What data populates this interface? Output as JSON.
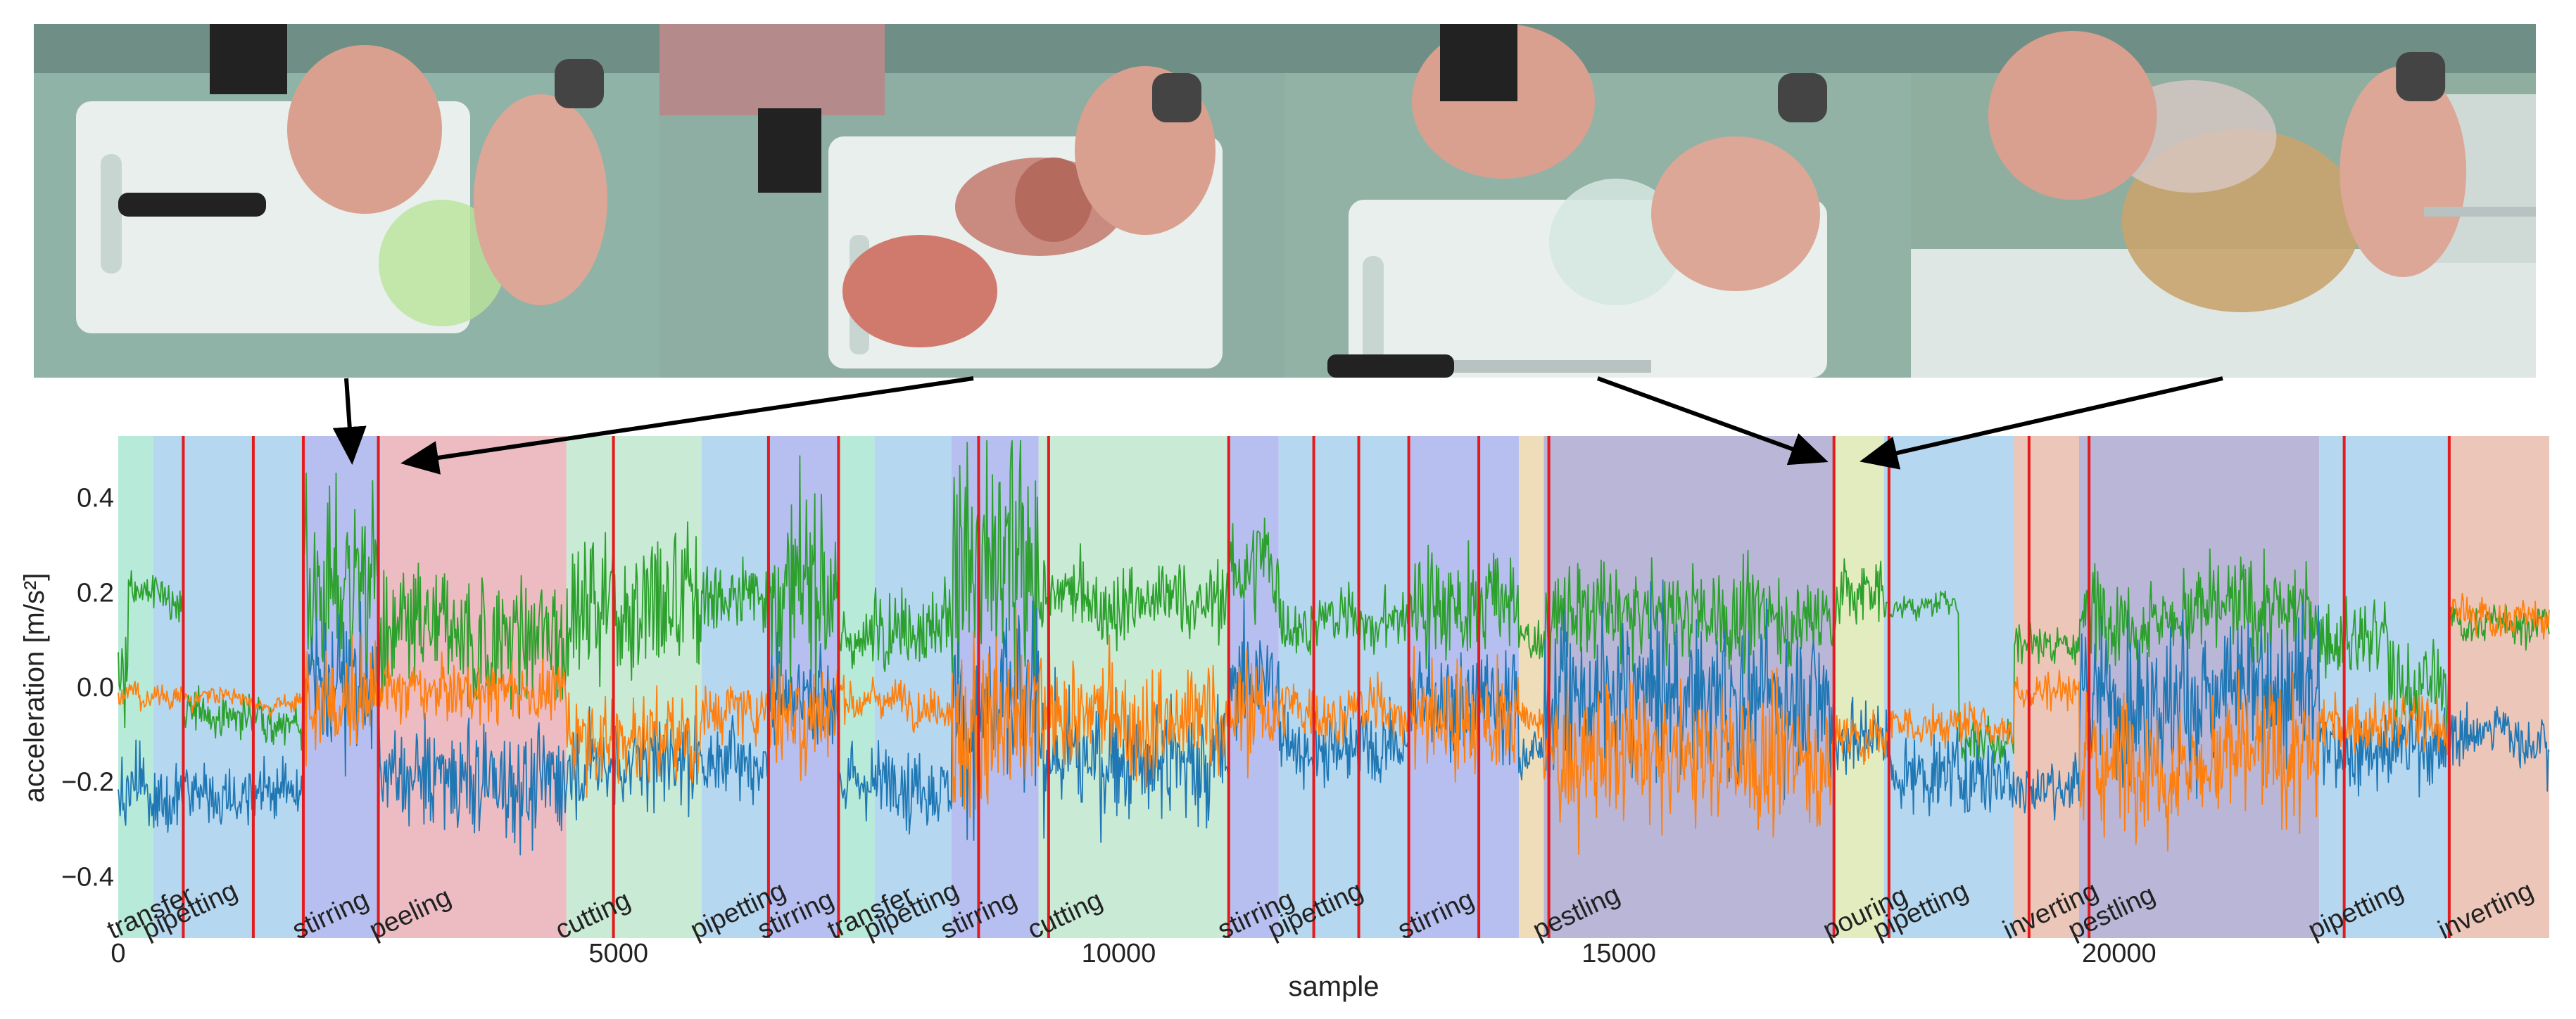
{
  "colors": {
    "series_1": "#1f77b4",
    "series_2": "#ff7f0e",
    "series_3": "#2ca02c",
    "boundary": "#e41a1c",
    "activity": {
      "transfer": "#b7ead8",
      "pipetting": "#b5d7f0",
      "stirring": "#b6bff0",
      "peeling": "#ecbcc2",
      "cutting": "#c9ead4",
      "pestling": "#b9b6d8",
      "pouring": "#e2ecbe",
      "inverting": "#ecc6b8",
      "gap": "#efdcb8"
    }
  },
  "photos": [
    {
      "icon": "video-frame-mixing-icon",
      "bg": "#8fb3a6"
    },
    {
      "icon": "video-frame-peeling-icon",
      "bg": "#8eaea3"
    },
    {
      "icon": "video-frame-pestling-icon",
      "bg": "#92b2a6"
    },
    {
      "icon": "video-frame-pouring-icon",
      "bg": "#8fae9f"
    }
  ],
  "chart_data": {
    "type": "line",
    "xlabel": "sample",
    "ylabel": "acceleration [m/s²]",
    "xlim": [
      0,
      24300
    ],
    "ylim": [
      -0.53,
      0.53
    ],
    "x_ticks": [
      0,
      5000,
      10000,
      15000,
      20000
    ],
    "x_tick_labels": [
      "0",
      "5000",
      "10000",
      "15000",
      "20000"
    ],
    "y_ticks": [
      0.4,
      0.2,
      0.0,
      -0.2,
      -0.4
    ],
    "y_tick_labels": [
      "0.4",
      "0.2",
      "0.0",
      "−0.2",
      "−0.4"
    ],
    "grid": false,
    "segments": [
      {
        "activity": "transfer",
        "start": 0,
        "end": 350,
        "label": "transfer"
      },
      {
        "activity": "pipetting",
        "start": 350,
        "end": 1850,
        "label": "pipetting"
      },
      {
        "activity": "stirring",
        "start": 1850,
        "end": 2620,
        "label": "stirring"
      },
      {
        "activity": "peeling",
        "start": 2620,
        "end": 4480,
        "label": "peeling"
      },
      {
        "activity": "cutting",
        "start": 4480,
        "end": 5830,
        "label": "cutting"
      },
      {
        "activity": "pipetting",
        "start": 5830,
        "end": 6500,
        "label": "pipetting"
      },
      {
        "activity": "stirring",
        "start": 6500,
        "end": 7200,
        "label": "stirring"
      },
      {
        "activity": "transfer",
        "start": 7200,
        "end": 7560,
        "label": "transfer"
      },
      {
        "activity": "pipetting",
        "start": 7560,
        "end": 8330,
        "label": "pipetting"
      },
      {
        "activity": "stirring",
        "start": 8330,
        "end": 9200,
        "label": "stirring"
      },
      {
        "activity": "cutting",
        "start": 9200,
        "end": 11100,
        "label": "cutting"
      },
      {
        "activity": "stirring",
        "start": 11100,
        "end": 11600,
        "label": "stirring"
      },
      {
        "activity": "pipetting",
        "start": 11600,
        "end": 12900,
        "label": "pipetting"
      },
      {
        "activity": "stirring",
        "start": 12900,
        "end": 14000,
        "label": "stirring"
      },
      {
        "activity": "gap",
        "start": 14000,
        "end": 14250,
        "label": ""
      },
      {
        "activity": "pestling",
        "start": 14250,
        "end": 17150,
        "label": "pestling"
      },
      {
        "activity": "pouring",
        "start": 17150,
        "end": 17650,
        "label": "pouring"
      },
      {
        "activity": "pipetting",
        "start": 17650,
        "end": 18950,
        "label": "pipetting"
      },
      {
        "activity": "inverting",
        "start": 18950,
        "end": 19600,
        "label": "inverting"
      },
      {
        "activity": "pestling",
        "start": 19600,
        "end": 22000,
        "label": "pestling"
      },
      {
        "activity": "pipetting",
        "start": 22000,
        "end": 23300,
        "label": "pipetting"
      },
      {
        "activity": "inverting",
        "start": 23300,
        "end": 24300,
        "label": "inverting"
      }
    ],
    "boundaries": [
      650,
      1350,
      1850,
      2600,
      4950,
      6500,
      7200,
      8600,
      9300,
      11100,
      11950,
      12400,
      12900,
      13600,
      14300,
      17150,
      17700,
      19100,
      19700,
      22250,
      23300
    ],
    "series": [
      {
        "key": "s3",
        "color": "#2ca02c",
        "profile": [
          [
            0,
            0.02,
            0.07
          ],
          [
            100,
            0.2,
            0.02
          ],
          [
            450,
            0.18,
            0.02
          ],
          [
            650,
            -0.06,
            0.02
          ],
          [
            1850,
            0.22,
            0.1
          ],
          [
            2600,
            0.1,
            0.07
          ],
          [
            4480,
            0.18,
            0.09
          ],
          [
            5830,
            0.2,
            0.04
          ],
          [
            6500,
            0.2,
            0.09
          ],
          [
            7200,
            0.1,
            0.03
          ],
          [
            7560,
            0.15,
            0.04
          ],
          [
            8330,
            0.25,
            0.14
          ],
          [
            9200,
            0.18,
            0.04
          ],
          [
            11100,
            0.25,
            0.06
          ],
          [
            11600,
            0.14,
            0.03
          ],
          [
            12900,
            0.18,
            0.06
          ],
          [
            14000,
            0.1,
            0.02
          ],
          [
            14250,
            0.15,
            0.05
          ],
          [
            17150,
            0.2,
            0.04
          ],
          [
            17700,
            0.17,
            0.01
          ],
          [
            18400,
            -0.1,
            0.03
          ],
          [
            18950,
            0.1,
            0.02
          ],
          [
            19600,
            0.16,
            0.05
          ],
          [
            22000,
            0.1,
            0.04
          ],
          [
            22700,
            0.0,
            0.05
          ],
          [
            23300,
            0.14,
            0.02
          ],
          [
            24300,
            0.14,
            0.02
          ]
        ]
      },
      {
        "key": "s1",
        "color": "#1f77b4",
        "profile": [
          [
            0,
            -0.23,
            0.04
          ],
          [
            650,
            -0.22,
            0.03
          ],
          [
            1850,
            0.02,
            0.07
          ],
          [
            2600,
            -0.2,
            0.06
          ],
          [
            4480,
            -0.15,
            0.05
          ],
          [
            5830,
            -0.15,
            0.04
          ],
          [
            6500,
            0.0,
            0.06
          ],
          [
            7200,
            -0.2,
            0.04
          ],
          [
            8330,
            -0.05,
            0.1
          ],
          [
            9200,
            -0.15,
            0.07
          ],
          [
            11100,
            0.02,
            0.06
          ],
          [
            11600,
            -0.12,
            0.04
          ],
          [
            12900,
            -0.02,
            0.06
          ],
          [
            14000,
            -0.13,
            0.03
          ],
          [
            14250,
            -0.02,
            0.08
          ],
          [
            17150,
            -0.1,
            0.04
          ],
          [
            17700,
            -0.18,
            0.04
          ],
          [
            18950,
            -0.2,
            0.03
          ],
          [
            19600,
            -0.02,
            0.08
          ],
          [
            22000,
            -0.12,
            0.04
          ],
          [
            23300,
            -0.1,
            0.03
          ],
          [
            24300,
            -0.12,
            0.03
          ]
        ]
      },
      {
        "key": "s2",
        "color": "#ff7f0e",
        "profile": [
          [
            0,
            -0.02,
            0.01
          ],
          [
            650,
            -0.02,
            0.01
          ],
          [
            1850,
            -0.03,
            0.06
          ],
          [
            2600,
            -0.01,
            0.03
          ],
          [
            4480,
            -0.1,
            0.05
          ],
          [
            5830,
            -0.05,
            0.03
          ],
          [
            6500,
            -0.05,
            0.06
          ],
          [
            7200,
            -0.02,
            0.02
          ],
          [
            8330,
            -0.08,
            0.1
          ],
          [
            9200,
            -0.07,
            0.06
          ],
          [
            11100,
            -0.05,
            0.06
          ],
          [
            11600,
            -0.05,
            0.03
          ],
          [
            12900,
            -0.06,
            0.06
          ],
          [
            14000,
            -0.08,
            0.02
          ],
          [
            14250,
            -0.15,
            0.07
          ],
          [
            17150,
            -0.1,
            0.03
          ],
          [
            17700,
            -0.08,
            0.02
          ],
          [
            18950,
            0.0,
            0.02
          ],
          [
            19600,
            -0.15,
            0.07
          ],
          [
            22000,
            -0.08,
            0.03
          ],
          [
            23300,
            0.15,
            0.02
          ],
          [
            24300,
            0.16,
            0.02
          ]
        ]
      }
    ]
  }
}
